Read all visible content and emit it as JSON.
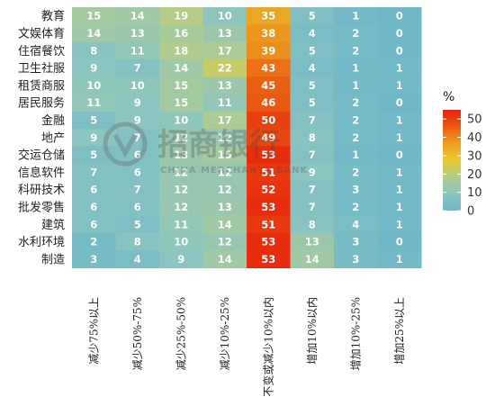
{
  "chart_data": {
    "type": "heatmap",
    "rows": [
      "教育",
      "文娱体育",
      "住宿餐饮",
      "卫生社服",
      "租赁商服",
      "居民服务",
      "金融",
      "地产",
      "交运仓储",
      "信息软件",
      "科研技术",
      "批发零售",
      "建筑",
      "水利环境",
      "制造"
    ],
    "columns": [
      "减少75%以上",
      "减少50%-75%",
      "减少25%-50%",
      "减少10%-25%",
      "不变或减少10%以内",
      "增加10%以内",
      "增加10%-25%",
      "增加25%以上"
    ],
    "values": [
      [
        15,
        14,
        19,
        10,
        35,
        5,
        1,
        0
      ],
      [
        14,
        13,
        16,
        13,
        38,
        4,
        2,
        0
      ],
      [
        8,
        11,
        18,
        17,
        39,
        5,
        2,
        0
      ],
      [
        9,
        7,
        14,
        22,
        43,
        4,
        1,
        1
      ],
      [
        10,
        10,
        15,
        13,
        45,
        5,
        1,
        1
      ],
      [
        11,
        9,
        15,
        11,
        46,
        5,
        2,
        0
      ],
      [
        5,
        9,
        10,
        17,
        50,
        7,
        2,
        1
      ],
      [
        9,
        7,
        12,
        12,
        49,
        8,
        2,
        1
      ],
      [
        5,
        6,
        13,
        15,
        53,
        7,
        1,
        0
      ],
      [
        7,
        6,
        12,
        12,
        51,
        9,
        2,
        1
      ],
      [
        6,
        7,
        12,
        12,
        52,
        7,
        3,
        1
      ],
      [
        6,
        6,
        12,
        13,
        53,
        7,
        2,
        1
      ],
      [
        6,
        5,
        11,
        14,
        51,
        8,
        4,
        1
      ],
      [
        2,
        8,
        10,
        12,
        53,
        13,
        3,
        0
      ],
      [
        3,
        4,
        9,
        14,
        53,
        14,
        3,
        1
      ]
    ],
    "legend": {
      "title": "%",
      "ticks": [
        0,
        10,
        20,
        30,
        40,
        50
      ],
      "range": [
        0,
        55
      ],
      "placement": "right"
    },
    "colorscale": [
      "#70b8c8",
      "#8bc4c0",
      "#b0cc8c",
      "#e8c830",
      "#eca020",
      "#ea5a12",
      "#e8200e"
    ]
  },
  "watermark": {
    "text": "招商银行",
    "subtext": "CHINA MERCHANTS BANK"
  }
}
